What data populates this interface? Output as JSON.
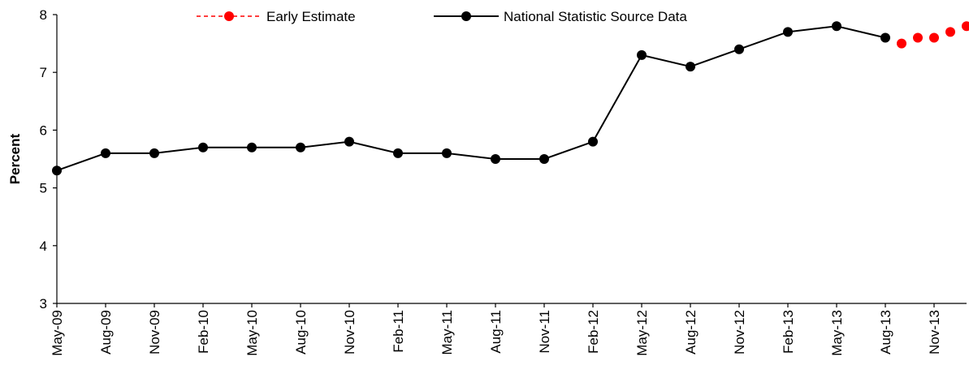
{
  "chart_data": {
    "type": "line",
    "ylabel": "Percent",
    "xlabel": "",
    "title": "",
    "ylim": [
      3,
      8
    ],
    "yticks": [
      3,
      4,
      5,
      6,
      7,
      8
    ],
    "xtick_labels": [
      "May-09",
      "Aug-09",
      "Nov-09",
      "Feb-10",
      "May-10",
      "Aug-10",
      "Nov-10",
      "Feb-11",
      "May-11",
      "Aug-11",
      "Nov-11",
      "Feb-12",
      "May-12",
      "Aug-12",
      "Nov-12",
      "Feb-13",
      "May-13",
      "Aug-13",
      "Nov-13"
    ],
    "grid": false,
    "legend_position": "top",
    "series": [
      {
        "name": "Early Estimate",
        "color": "#ff0000",
        "style": "dashed-markers",
        "x": [
          "Sep-13",
          "Oct-13",
          "Nov-13",
          "Dec-13",
          "Jan-14"
        ],
        "values": [
          7.5,
          7.6,
          7.6,
          7.7,
          7.8
        ]
      },
      {
        "name": "National Statistic Source Data",
        "color": "#000000",
        "style": "solid-markers",
        "x": [
          "May-09",
          "Aug-09",
          "Nov-09",
          "Feb-10",
          "May-10",
          "Aug-10",
          "Nov-10",
          "Feb-11",
          "May-11",
          "Aug-11",
          "Nov-11",
          "Feb-12",
          "May-12",
          "Aug-12",
          "Nov-12",
          "Feb-13",
          "May-13",
          "Aug-13"
        ],
        "values": [
          5.3,
          5.6,
          5.6,
          5.7,
          5.7,
          5.7,
          5.8,
          5.6,
          5.6,
          5.5,
          5.5,
          5.8,
          7.3,
          7.1,
          7.4,
          7.7,
          7.8,
          7.6
        ]
      }
    ]
  }
}
